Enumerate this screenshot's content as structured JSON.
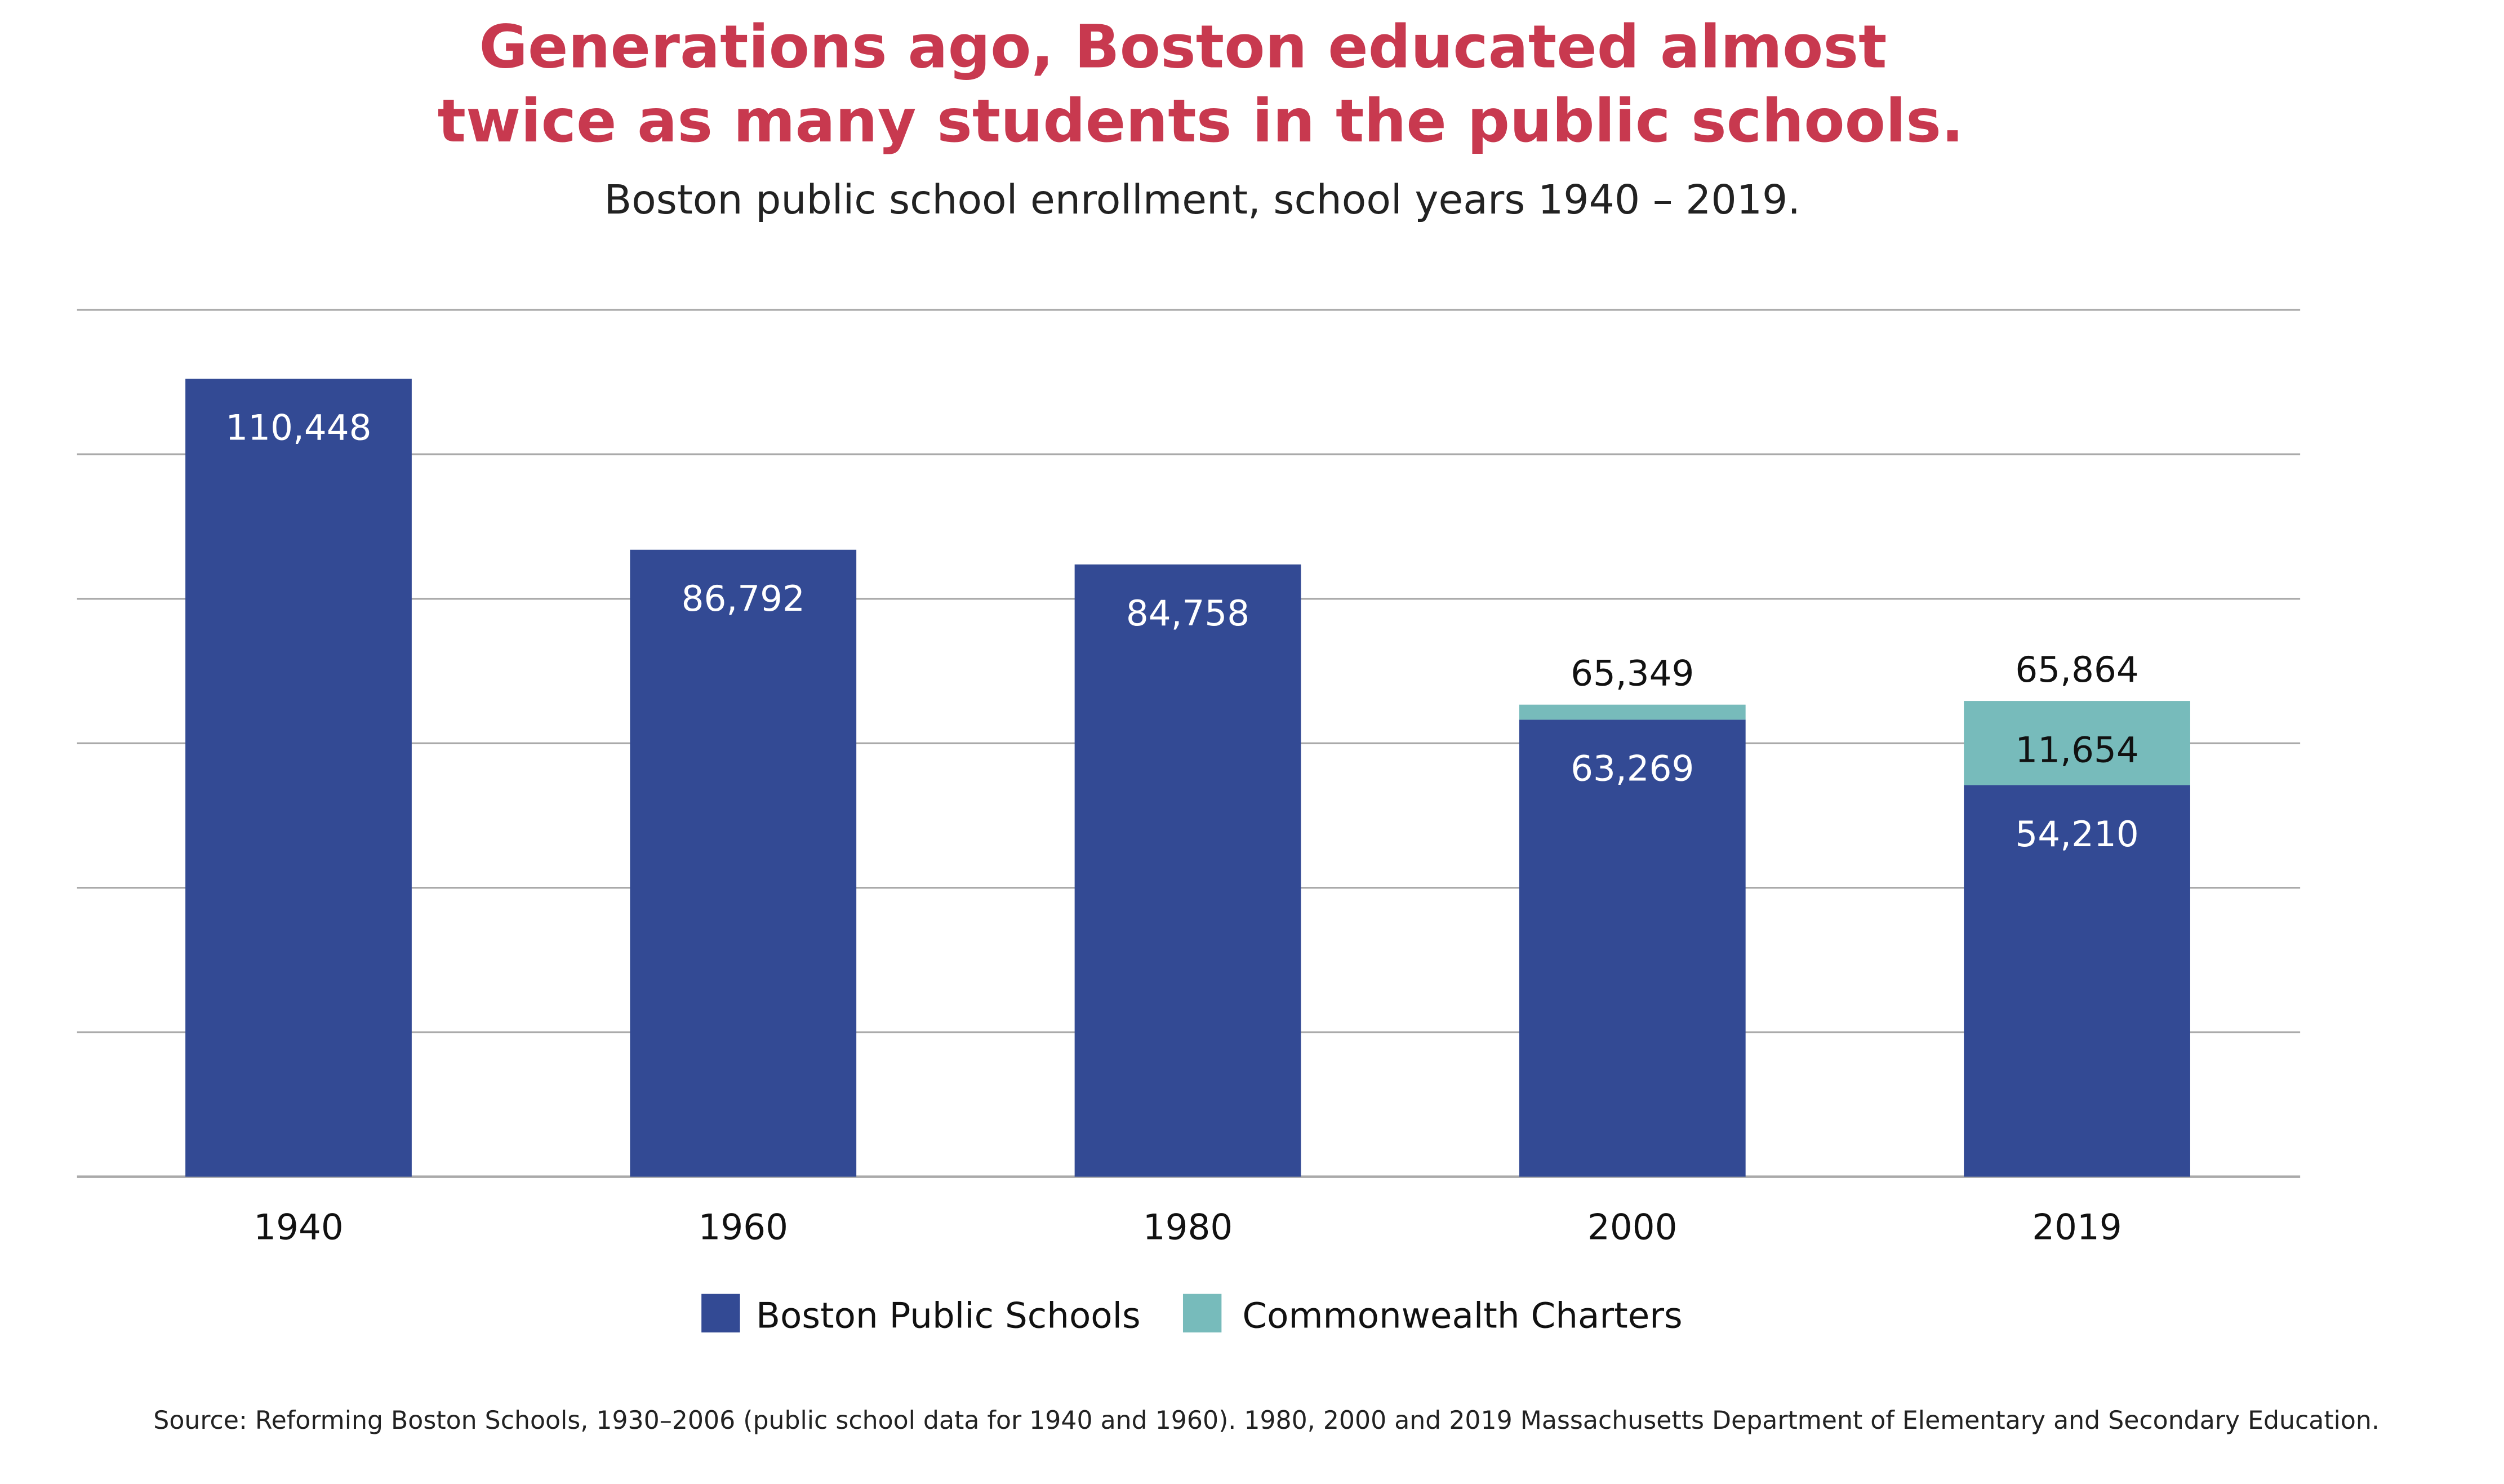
{
  "chart_data": {
    "type": "stacked-bar",
    "title": "Generations ago, Boston educated almost twice as many students in the public schools.",
    "title_lines": [
      "Generations ago, Boston educated almost",
      "twice as many students in the public schools."
    ],
    "subtitle": "Boston public school enrollment, school years 1940 – 2019.",
    "xlabel": "",
    "ylabel": "",
    "categories": [
      "1940",
      "1960",
      "1980",
      "2000",
      "2019"
    ],
    "series": [
      {
        "name": "Boston Public Schools",
        "color": "#334a94",
        "values": [
          110448,
          86792,
          84758,
          63269,
          54210
        ],
        "labels": [
          "110,448",
          "86,792",
          "84,758",
          "63,269",
          "54,210"
        ]
      },
      {
        "name": "Commonwealth Charters",
        "color": "#77bbbb",
        "values": [
          0,
          0,
          0,
          2080,
          11654
        ],
        "labels": [
          "",
          "",
          "",
          "",
          "11,654"
        ]
      }
    ],
    "totals": [
      null,
      null,
      null,
      65349,
      65864
    ],
    "total_labels": [
      "",
      "",
      "",
      "65,349",
      "65,864"
    ],
    "ylim": [
      0,
      120000
    ],
    "gridline_step": 20000,
    "grid": true,
    "y_tick_labels_shown": false,
    "legend_position": "bottom",
    "source": "Source: Reforming Boston Schools, 1930–2006 (public school data for 1940 and 1960). 1980, 2000 and 2019 Massachusetts Department of Elementary and Secondary Education.",
    "colors": {
      "title": "#c8394f",
      "grid": "#aaaaaa"
    }
  }
}
